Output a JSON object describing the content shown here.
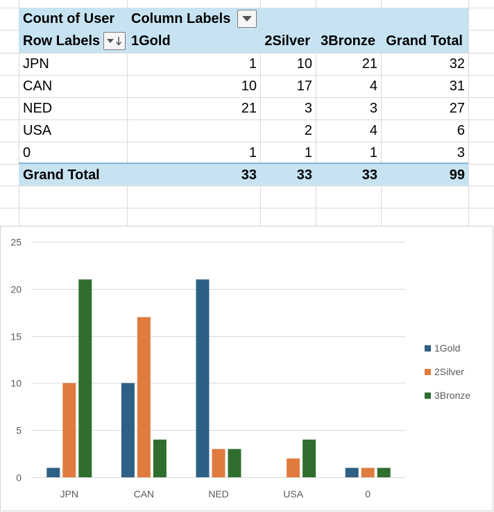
{
  "pivot": {
    "header": {
      "value_field": "Count of User",
      "column_labels": "Column Labels",
      "row_labels": "Row Labels",
      "columns": [
        "1Gold",
        "2Silver",
        "3Bronze",
        "Grand Total"
      ]
    },
    "rows": [
      {
        "label": "JPN",
        "gold": "1",
        "silver": "10",
        "bronze": "21",
        "total": "32"
      },
      {
        "label": "CAN",
        "gold": "10",
        "silver": "17",
        "bronze": "4",
        "total": "31"
      },
      {
        "label": "NED",
        "gold": "21",
        "silver": "3",
        "bronze": "3",
        "total": "27"
      },
      {
        "label": "USA",
        "gold": "",
        "silver": "2",
        "bronze": "4",
        "total": "6"
      },
      {
        "label": "0",
        "gold": "1",
        "silver": "1",
        "bronze": "1",
        "total": "3"
      }
    ],
    "grand_total": {
      "label": "Grand Total",
      "gold": "33",
      "silver": "33",
      "bronze": "33",
      "total": "99"
    }
  },
  "colors": {
    "header_fill": "#c7e3f2",
    "gold_series": "#2e5f85",
    "silver_series": "#e07b3f",
    "bronze_series": "#2f6e2f"
  },
  "icons": {
    "column_filter": "dropdown-arrow-icon",
    "row_sort_filter": "sort-filter-icon"
  },
  "chart_data": {
    "type": "bar",
    "categories": [
      "JPN",
      "CAN",
      "NED",
      "USA",
      "0"
    ],
    "series": [
      {
        "name": "1Gold",
        "values": [
          1,
          10,
          21,
          0,
          1
        ]
      },
      {
        "name": "2Silver",
        "values": [
          10,
          17,
          3,
          2,
          1
        ]
      },
      {
        "name": "3Bronze",
        "values": [
          21,
          4,
          3,
          4,
          1
        ]
      }
    ],
    "yticks": [
      "0",
      "5",
      "10",
      "15",
      "20",
      "25"
    ],
    "ylim": [
      0,
      25
    ],
    "title": "",
    "xlabel": "",
    "ylabel": "",
    "legend": "right",
    "grid": true
  }
}
